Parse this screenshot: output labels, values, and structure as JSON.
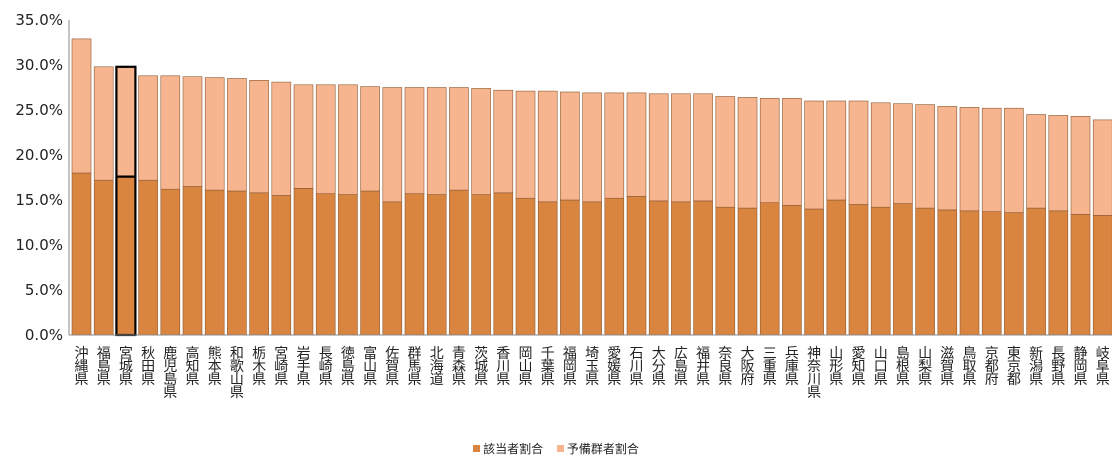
{
  "chart_data": {
    "type": "bar",
    "stacked": true,
    "categories": [
      "沖縄県",
      "福島県",
      "宮城県",
      "秋田県",
      "鹿児島県",
      "高知県",
      "熊本県",
      "和歌山県",
      "栃木県",
      "宮崎県",
      "岩手県",
      "長崎県",
      "徳島県",
      "富山県",
      "佐賀県",
      "群馬県",
      "北海道",
      "青森県",
      "茨城県",
      "香川県",
      "岡山県",
      "千葉県",
      "福岡県",
      "埼玉県",
      "愛媛県",
      "石川県",
      "大分県",
      "広島県",
      "福井県",
      "奈良県",
      "大阪府",
      "三重県",
      "兵庫県",
      "神奈川県",
      "山形県",
      "愛知県",
      "山口県",
      "島根県",
      "山梨県",
      "滋賀県",
      "鳥取県",
      "京都府",
      "東京都",
      "新潟県",
      "長野県",
      "静岡県",
      "岐阜県"
    ],
    "series": [
      {
        "name": "該当者割合",
        "color": "#d9843f",
        "values": [
          18.0,
          17.2,
          17.6,
          17.2,
          16.2,
          16.5,
          16.1,
          16.0,
          15.8,
          15.5,
          16.3,
          15.7,
          15.6,
          16.0,
          14.8,
          15.7,
          15.6,
          16.1,
          15.6,
          15.8,
          15.2,
          14.8,
          15.0,
          14.8,
          15.2,
          15.4,
          14.9,
          14.8,
          14.9,
          14.2,
          14.1,
          14.7,
          14.4,
          14.0,
          15.0,
          14.5,
          14.2,
          14.6,
          14.1,
          13.9,
          13.8,
          13.7,
          13.6,
          14.1,
          13.8,
          13.4,
          13.3
        ]
      },
      {
        "name": "予備群者割合",
        "color": "#f6b48f",
        "values": [
          14.9,
          12.6,
          12.2,
          11.6,
          12.6,
          12.2,
          12.5,
          12.5,
          12.5,
          12.6,
          11.5,
          12.1,
          12.2,
          11.6,
          12.7,
          11.8,
          11.9,
          11.4,
          11.8,
          11.4,
          11.9,
          12.3,
          12.0,
          12.1,
          11.7,
          11.5,
          11.9,
          12.0,
          11.9,
          12.3,
          12.3,
          11.6,
          11.9,
          12.0,
          11.0,
          11.5,
          11.6,
          11.1,
          11.5,
          11.5,
          11.5,
          11.5,
          11.6,
          10.4,
          10.6,
          10.9,
          10.6
        ]
      }
    ],
    "highlight_category": "宮城県",
    "yticks": [
      "0.0%",
      "5.0%",
      "10.0%",
      "15.0%",
      "20.0%",
      "25.0%",
      "30.0%",
      "35.0%"
    ],
    "ylim": [
      0,
      35
    ],
    "legend_position": "bottom"
  }
}
